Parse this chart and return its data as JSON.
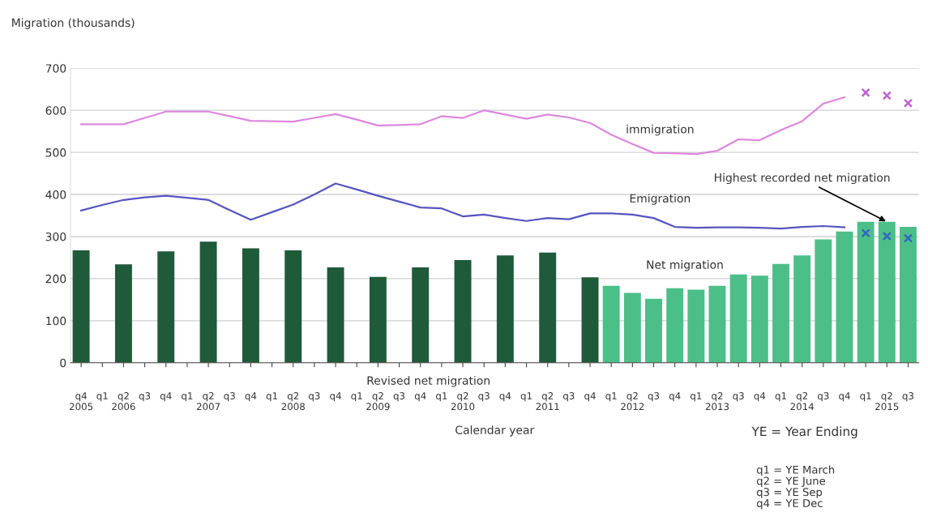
{
  "chart_data": {
    "type": "bar",
    "ylabel": "Migration (thousands)",
    "xlabel": "Calendar year",
    "categories": [
      "q4\n2005",
      "q1",
      "q2\n2006",
      "q3",
      "q4",
      "q1",
      "q2\n2007",
      "q3",
      "q4",
      "q1",
      "q2\n2008",
      "q3",
      "q4",
      "q1",
      "q2\n2009",
      "q3",
      "q4",
      "q1",
      "q2\n2010",
      "q3",
      "q4",
      "q1",
      "q2\n2011",
      "q3",
      "q4",
      "q1",
      "q2\n2012",
      "q3",
      "q4",
      "q1",
      "q2\n2013",
      "q3",
      "q4",
      "q1",
      "q2\n2014",
      "q3",
      "q4",
      "q1",
      "q2\n2015",
      "q3"
    ],
    "series": [
      {
        "name": "Revised net migration",
        "color": "#1f5a3b",
        "values": [
          267,
          null,
          234,
          null,
          265,
          null,
          288,
          null,
          272,
          null,
          267,
          null,
          227,
          null,
          204,
          null,
          227,
          null,
          244,
          null,
          255,
          null,
          262,
          null,
          203,
          null,
          null,
          null,
          null,
          null,
          null,
          null,
          null,
          null,
          null,
          null,
          null,
          null,
          null,
          null
        ]
      },
      {
        "name": "Net migration",
        "color": "#4cbf88",
        "values": [
          null,
          null,
          null,
          null,
          null,
          null,
          null,
          null,
          null,
          null,
          null,
          null,
          null,
          null,
          null,
          null,
          null,
          null,
          null,
          null,
          null,
          null,
          null,
          null,
          null,
          183,
          166,
          152,
          177,
          174,
          183,
          210,
          207,
          235,
          255,
          293,
          312,
          335,
          335,
          323
        ]
      },
      {
        "name": "immigration",
        "type": "line",
        "color": "#dd88dd",
        "marker": "none",
        "values": [
          567,
          567,
          567,
          582,
          597,
          597,
          597,
          586,
          575,
          574,
          573,
          582,
          591,
          578,
          564,
          565,
          567,
          586,
          582,
          600,
          590,
          580,
          590,
          583,
          570,
          542,
          520,
          499,
          498,
          496,
          504,
          531,
          529,
          553,
          574,
          616,
          631,
          null,
          null,
          null
        ]
      },
      {
        "name": "Emigration",
        "type": "line",
        "color": "#5555c0",
        "marker": "none",
        "values": [
          362,
          375,
          387,
          393,
          397,
          392,
          387,
          363,
          340,
          358,
          376,
          400,
          426,
          412,
          397,
          383,
          369,
          367,
          348,
          352,
          344,
          337,
          344,
          341,
          355,
          355,
          352,
          344,
          323,
          321,
          322,
          322,
          321,
          319,
          323,
          325,
          322,
          null,
          null,
          null
        ]
      },
      {
        "type": "scatter",
        "color": "#c060d0",
        "marker": "cross",
        "values": [
          null,
          null,
          null,
          null,
          null,
          null,
          null,
          null,
          null,
          null,
          null,
          null,
          null,
          null,
          null,
          null,
          null,
          null,
          null,
          null,
          null,
          null,
          null,
          null,
          null,
          null,
          null,
          null,
          null,
          null,
          null,
          null,
          null,
          null,
          null,
          null,
          null,
          642,
          635,
          617
        ]
      },
      {
        "type": "scatter",
        "color": "#3366c0",
        "marker": "cross",
        "values": [
          null,
          null,
          null,
          null,
          null,
          null,
          null,
          null,
          null,
          null,
          null,
          null,
          null,
          null,
          null,
          null,
          null,
          null,
          null,
          null,
          null,
          null,
          null,
          null,
          null,
          null,
          null,
          null,
          null,
          null,
          null,
          null,
          null,
          null,
          null,
          null,
          null,
          308,
          301,
          296
        ]
      }
    ],
    "ylim": [
      0,
      700
    ],
    "yticks": [
      0,
      100,
      200,
      300,
      400,
      500,
      600,
      700
    ],
    "grid": "y",
    "annotations": [
      {
        "text": "Highest recorded net migration",
        "x": "q2\n2015",
        "y": 335
      },
      "YE = Year Ending",
      "q1 = YE March\nq2 = YE June\nq3 = YE Sep\nq4 = YE Dec"
    ]
  }
}
